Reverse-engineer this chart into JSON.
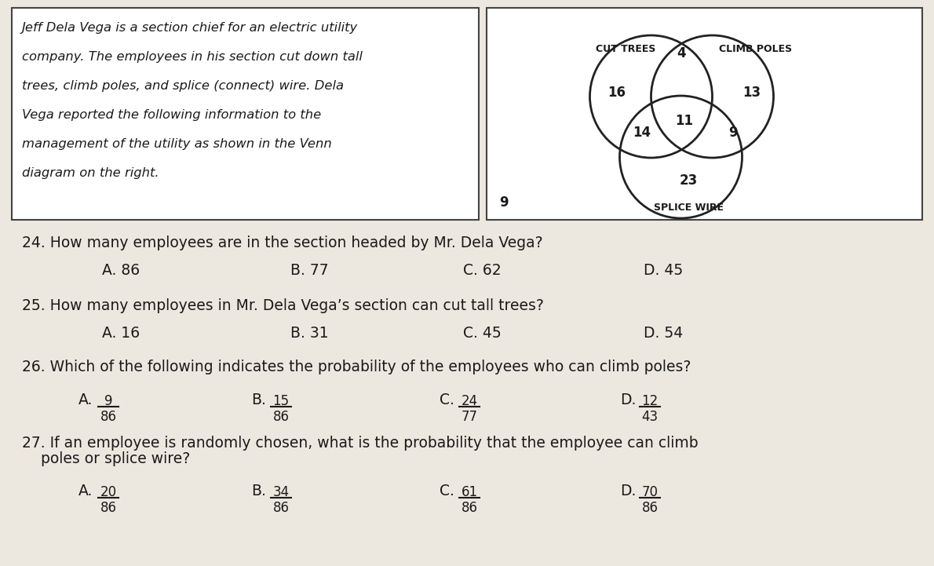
{
  "background_color": "#ede8df",
  "text_color": "#1a1a1a",
  "intro_text_lines": [
    "Jeff Dela Vega is a section chief for an electric utility",
    "company. The employees in his section cut down tall",
    "trees, climb poles, and splice (connect) wire. Dela",
    "Vega reported the following information to the",
    "management of the utility as shown in the Venn",
    "diagram on the right."
  ],
  "venn_values": {
    "cut_only": 16,
    "climb_only": 13,
    "splice_only": 23,
    "cut_climb": 4,
    "cut_splice": 14,
    "climb_splice": 9,
    "all_three": 11,
    "outside": 9
  },
  "q24": "24. How many employees are in the section headed by Mr. Dela Vega?",
  "q24_choices": [
    "A. 86",
    "B. 77",
    "C. 62",
    "D. 45"
  ],
  "q25": "25. How many employees in Mr. Dela Vega’s section can cut tall trees?",
  "q25_choices": [
    "A. 16",
    "B. 31",
    "C. 45",
    "D. 54"
  ],
  "q26": "26. Which of the following indicates the probability of the employees who can climb poles?",
  "q26_letters": [
    "A.",
    "B.",
    "C.",
    "D."
  ],
  "q26_nums": [
    "9",
    "15",
    "24",
    "12"
  ],
  "q26_dens": [
    "86",
    "86",
    "77",
    "43"
  ],
  "q27_line1": "27. If an employee is randomly chosen, what is the probability that the employee can climb",
  "q27_line2": "    poles or splice wire?",
  "q27_letters": [
    "A.",
    "B.",
    "C.",
    "D."
  ],
  "q27_nums": [
    "20",
    "34",
    "61",
    "70"
  ],
  "q27_dens": [
    "86",
    "86",
    "86",
    "86"
  ]
}
